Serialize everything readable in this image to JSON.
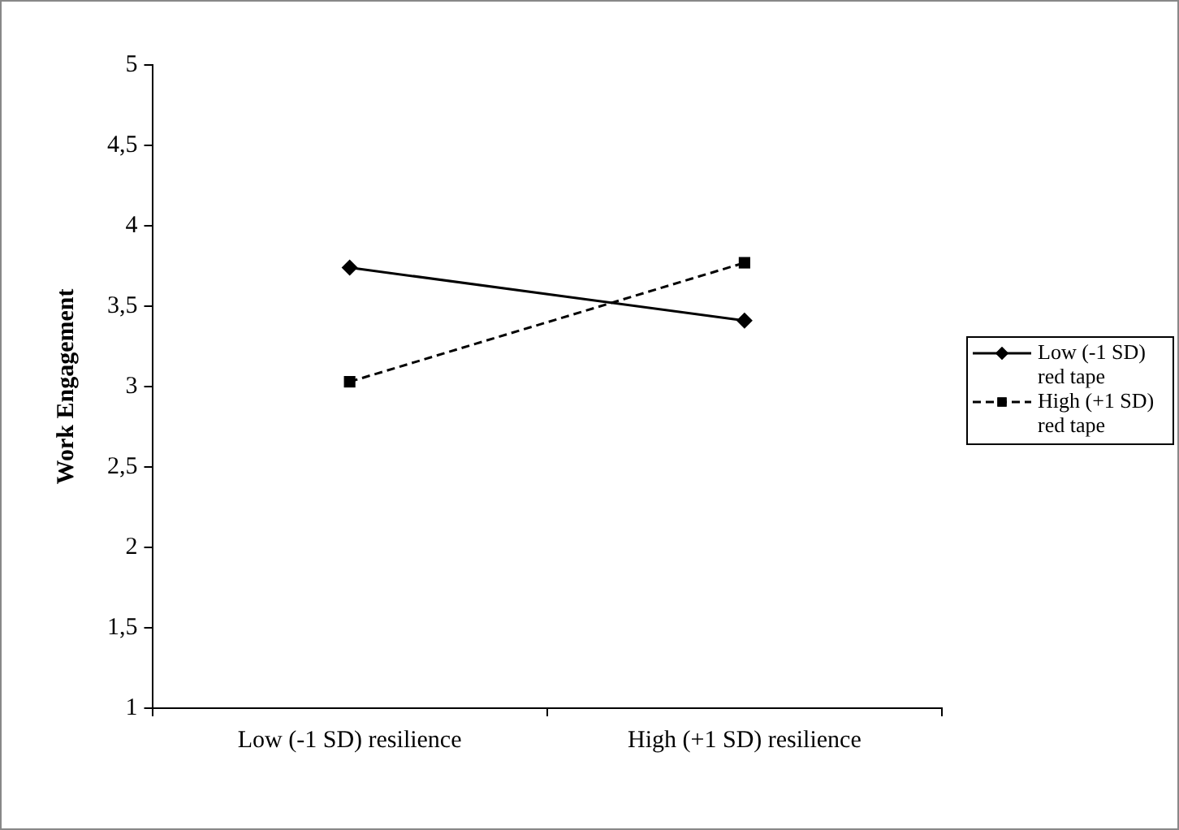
{
  "chart_data": {
    "type": "line",
    "ylabel": "Work Engagement",
    "categories": [
      "Low (-1 SD) resilience",
      "High (+1 SD) resilience"
    ],
    "series": [
      {
        "name": "Low (-1 SD) red tape",
        "color": "#000000",
        "values": [
          3.74,
          3.41
        ],
        "marker": "diamond",
        "line_style": "solid"
      },
      {
        "name": "High (+1 SD) red tape",
        "color": "#000000",
        "values": [
          3.03,
          3.77
        ],
        "marker": "square",
        "line_style": "dashed"
      }
    ],
    "ylim": [
      1,
      5
    ],
    "yticks": [
      1,
      {
        "value": 1.5,
        "label": "1,5"
      },
      2,
      {
        "value": 2.5,
        "label": "2,5"
      },
      3,
      {
        "value": 3.5,
        "label": "3,5"
      },
      4,
      {
        "value": 4.5,
        "label": "4,5"
      },
      5
    ],
    "grid": false,
    "legend": "right"
  }
}
